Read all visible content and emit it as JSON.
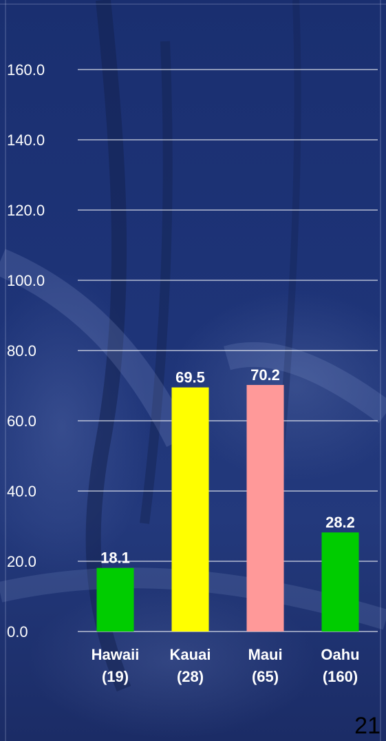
{
  "chart_data": {
    "type": "bar",
    "categories": [
      "Hawaii\n(19)",
      "Kauai\n(28)",
      "Maui\n(65)",
      "Oahu\n(160)"
    ],
    "category_lines": [
      [
        "Hawaii",
        "(19)"
      ],
      [
        "Kauai",
        "(28)"
      ],
      [
        "Maui",
        "(65)"
      ],
      [
        "Oahu",
        "(160)"
      ]
    ],
    "values": [
      18.1,
      69.5,
      70.2,
      28.2
    ],
    "value_labels": [
      "18.1",
      "69.5",
      "70.2",
      "28.2"
    ],
    "bar_colors": [
      "#00cc00",
      "#ffff00",
      "#ff9999",
      "#00cc00"
    ],
    "ylim": [
      0,
      170
    ],
    "yticks": [
      0,
      20,
      40,
      60,
      80,
      100,
      120,
      140,
      160
    ],
    "ytick_labels": [
      "0.0",
      "20.0",
      "40.0",
      "60.0",
      "80.0",
      "100.0",
      "120.0",
      "140.0",
      "160.0"
    ],
    "grid": true,
    "title": "",
    "xlabel": "",
    "ylabel": ""
  },
  "footer": {
    "slide_number": "21"
  }
}
